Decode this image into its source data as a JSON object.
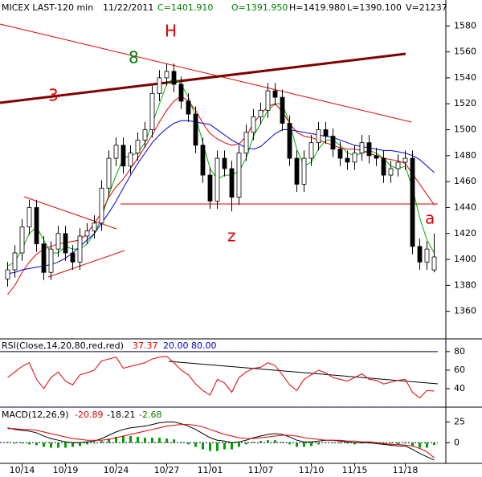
{
  "chart_data": [
    {
      "type": "candlestick",
      "header": [
        "MICEX LAST-120 min",
        "11/22/2011",
        "C=1401.910",
        "O=1391.950",
        "H=1419.980",
        "L=1390.100",
        "V=21237"
      ],
      "categories": [
        null,
        null,
        "10/14",
        null,
        null,
        null,
        null,
        null,
        "10/19",
        null,
        null,
        null,
        null,
        null,
        null,
        "10/24",
        null,
        null,
        null,
        null,
        null,
        null,
        "10/27",
        null,
        null,
        null,
        null,
        null,
        "11/01",
        null,
        null,
        null,
        null,
        null,
        null,
        "11/07",
        null,
        null,
        null,
        null,
        null,
        null,
        "11/10",
        null,
        null,
        null,
        null,
        null,
        "11/15",
        null,
        null,
        null,
        null,
        null,
        null,
        "11/18",
        null,
        null,
        null,
        null
      ],
      "open": [
        1385,
        1392,
        1405,
        1425,
        1440,
        1412,
        1390,
        1408,
        1420,
        1405,
        1398,
        1418,
        1422,
        1428,
        1455,
        1478,
        1488,
        1472,
        1482,
        1492,
        1500,
        1528,
        1540,
        1545,
        1535,
        1522,
        1512,
        1488,
        1465,
        1445,
        1478,
        1470,
        1448,
        1482,
        1498,
        1510,
        1515,
        1530,
        1525,
        1505,
        1478,
        1458,
        1478,
        1490,
        1500,
        1495,
        1485,
        1478,
        1475,
        1482,
        1490,
        1480,
        1478,
        1465,
        1470,
        1475,
        1478,
        1410,
        1398,
        1391.95
      ],
      "high": [
        1398,
        1411,
        1431,
        1446,
        1446,
        1418,
        1414,
        1426,
        1426,
        1411,
        1424,
        1428,
        1434,
        1461,
        1484,
        1494,
        1494,
        1488,
        1498,
        1506,
        1534,
        1546,
        1551,
        1551,
        1541,
        1528,
        1518,
        1494,
        1471,
        1484,
        1484,
        1476,
        1488,
        1504,
        1516,
        1521,
        1536,
        1536,
        1531,
        1511,
        1484,
        1484,
        1496,
        1506,
        1506,
        1501,
        1491,
        1484,
        1488,
        1496,
        1496,
        1486,
        1484,
        1476,
        1481,
        1484,
        1484,
        1416,
        1414,
        1419.98
      ],
      "low": [
        1379,
        1386,
        1399,
        1419,
        1406,
        1384,
        1384,
        1402,
        1399,
        1392,
        1392,
        1412,
        1416,
        1422,
        1449,
        1472,
        1466,
        1466,
        1476,
        1486,
        1494,
        1522,
        1534,
        1529,
        1516,
        1506,
        1482,
        1459,
        1439,
        1439,
        1464,
        1437,
        1442,
        1476,
        1492,
        1504,
        1509,
        1519,
        1499,
        1472,
        1452,
        1452,
        1472,
        1484,
        1489,
        1479,
        1472,
        1469,
        1469,
        1476,
        1474,
        1472,
        1459,
        1459,
        1464,
        1469,
        1404,
        1392,
        1392,
        1390.1
      ],
      "close": [
        1392,
        1405,
        1425,
        1440,
        1412,
        1390,
        1408,
        1420,
        1405,
        1398,
        1418,
        1422,
        1428,
        1455,
        1478,
        1488,
        1472,
        1482,
        1492,
        1500,
        1528,
        1540,
        1545,
        1535,
        1522,
        1512,
        1488,
        1465,
        1445,
        1478,
        1470,
        1448,
        1482,
        1498,
        1510,
        1515,
        1530,
        1525,
        1505,
        1478,
        1458,
        1478,
        1490,
        1500,
        1495,
        1485,
        1478,
        1475,
        1482,
        1490,
        1480,
        1478,
        1465,
        1470,
        1475,
        1478,
        1410,
        1398,
        1408,
        1401.91
      ],
      "moving_averages": [
        {
          "color": "#00b000",
          "values": [
            1395,
            1398,
            1408,
            1420,
            1425,
            1415,
            1405,
            1405,
            1410,
            1408,
            1408,
            1412,
            1420,
            1432,
            1450,
            1465,
            1478,
            1480,
            1482,
            1490,
            1505,
            1520,
            1535,
            1540,
            1535,
            1525,
            1510,
            1490,
            1470,
            1462,
            1465,
            1465,
            1468,
            1478,
            1495,
            1505,
            1515,
            1520,
            1520,
            1505,
            1485,
            1472,
            1475,
            1485,
            1492,
            1492,
            1488,
            1482,
            1480,
            1482,
            1484,
            1482,
            1478,
            1472,
            1470,
            1472,
            1455,
            1432,
            1415,
            1405
          ]
        },
        {
          "color": "#e00000",
          "values": [
            1373,
            1380,
            1390,
            1398,
            1404,
            1408,
            1410,
            1412,
            1413,
            1414,
            1415,
            1420,
            1428,
            1436,
            1448,
            1456,
            1462,
            1470,
            1478,
            1487,
            1496,
            1506,
            1515,
            1522,
            1526,
            1522,
            1515,
            1505,
            1497,
            1493,
            1490,
            1488,
            1489,
            1495,
            1505,
            1512,
            1518,
            1520,
            1514,
            1505,
            1498,
            1495,
            1494,
            1492,
            1490,
            1488,
            1486,
            1485,
            1485,
            1484,
            1482,
            1480,
            1478,
            1477,
            1476,
            1474,
            1466,
            1458,
            1450,
            1442
          ]
        },
        {
          "color": "#0000e0",
          "values": [
            1389,
            1390,
            1392,
            1393,
            1394,
            1395,
            1396,
            1398,
            1401,
            1405,
            1410,
            1415,
            1420,
            1428,
            1436,
            1445,
            1455,
            1465,
            1474,
            1482,
            1490,
            1496,
            1501,
            1505,
            1507,
            1507,
            1506,
            1505,
            1504,
            1500,
            1496,
            1492,
            1489,
            1486,
            1485,
            1487,
            1492,
            1497,
            1500,
            1500,
            1499,
            1498,
            1497,
            1496,
            1495,
            1494,
            1492,
            1490,
            1488,
            1487,
            1486,
            1485,
            1484,
            1484,
            1483,
            1482,
            1480,
            1477,
            1472,
            1467
          ]
        }
      ],
      "annotations": [
        "H",
        "8",
        "3",
        "z",
        "a"
      ],
      "ylim": [
        1340,
        1600
      ],
      "yticks": [
        1360,
        1380,
        1400,
        1420,
        1440,
        1460,
        1480,
        1500,
        1520,
        1540,
        1560,
        1580
      ]
    },
    {
      "type": "line",
      "title": "RSI(Close,14,20,80,red,red)",
      "color": "#e00000",
      "values": [
        52,
        58,
        64,
        68,
        50,
        40,
        52,
        58,
        48,
        44,
        55,
        57,
        60,
        70,
        72,
        74,
        62,
        64,
        66,
        68,
        72,
        74,
        75,
        68,
        60,
        55,
        45,
        38,
        33,
        50,
        46,
        36,
        52,
        58,
        62,
        63,
        68,
        65,
        55,
        44,
        38,
        50,
        55,
        60,
        57,
        52,
        50,
        48,
        52,
        56,
        50,
        49,
        45,
        47,
        49,
        50,
        36,
        30,
        38,
        37.37
      ],
      "levels": [
        {
          "value": 20,
          "label": "20.00"
        },
        {
          "value": 80,
          "label": "80.00"
        }
      ],
      "ylim": [
        20,
        92
      ],
      "yticks": [
        40,
        60,
        80
      ]
    },
    {
      "type": "macd",
      "title": "MACD(12,26,9)",
      "macd": [
        18,
        16,
        15,
        14,
        12,
        8,
        5,
        3,
        1,
        0,
        0,
        1,
        2,
        5,
        9,
        13,
        16,
        18,
        19,
        20,
        22,
        24,
        25,
        25,
        23,
        20,
        16,
        11,
        6,
        3,
        2,
        0,
        1,
        3,
        6,
        8,
        10,
        11,
        10,
        7,
        3,
        1,
        1,
        2,
        3,
        3,
        2,
        1,
        0,
        0,
        0,
        -1,
        -2,
        -3,
        -4,
        -4,
        -8,
        -13,
        -17,
        -20.89
      ],
      "signal": [
        17,
        17,
        16,
        16,
        15,
        13,
        11,
        9,
        7,
        5,
        4,
        3,
        3,
        3,
        4,
        6,
        8,
        10,
        12,
        14,
        16,
        18,
        20,
        21,
        22,
        22,
        21,
        19,
        16,
        13,
        10,
        8,
        6,
        5,
        5,
        6,
        7,
        8,
        9,
        9,
        8,
        6,
        5,
        4,
        3,
        3,
        3,
        2,
        2,
        1,
        1,
        0,
        -1,
        -2,
        -2,
        -3,
        -4,
        -7,
        -11,
        -18.21
      ],
      "histogram": [
        1,
        -1,
        -1,
        -2,
        -3,
        -5,
        -6,
        -6,
        -6,
        -5,
        -4,
        -2,
        -1,
        2,
        5,
        7,
        8,
        8,
        7,
        6,
        6,
        6,
        5,
        4,
        1,
        -2,
        -5,
        -8,
        -10,
        -10,
        -8,
        -8,
        -5,
        -2,
        1,
        2,
        3,
        3,
        1,
        -2,
        -5,
        -5,
        -4,
        -2,
        0,
        0,
        -1,
        -1,
        -2,
        -1,
        -1,
        -1,
        -1,
        -1,
        -2,
        -1,
        -4,
        -6,
        -6,
        -2.68
      ],
      "ylim": [
        -23,
        42
      ],
      "yticks": [
        0,
        25
      ]
    }
  ]
}
